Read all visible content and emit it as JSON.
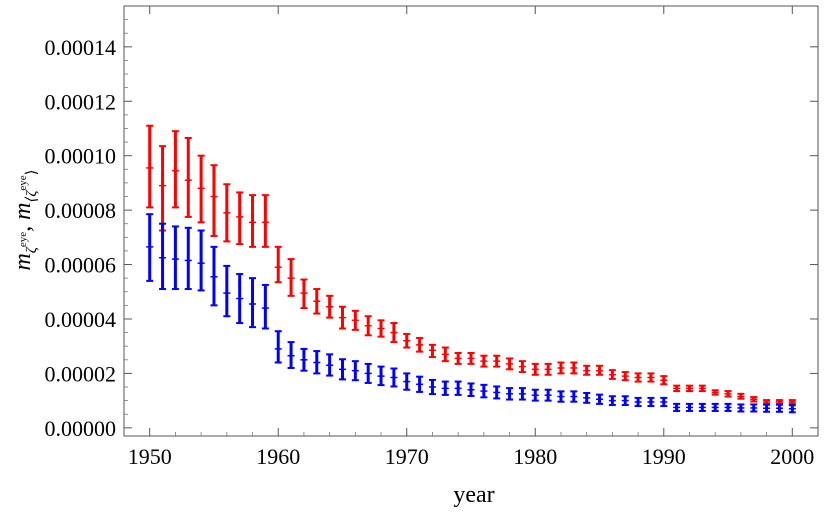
{
  "chart_data": {
    "type": "errorbar",
    "title": "",
    "xlabel": "year",
    "ylabel": "m_{ζ^eye}, m_{⟨ζ^eye⟩}",
    "ylabel_main": "m",
    "ylabel_sub1": "ζ",
    "ylabel_sup1": "eye",
    "ylabel_sep": ", m",
    "ylabel_sub2": "⟨ζ",
    "ylabel_sup2": "eye",
    "ylabel_close": "⟩",
    "xlim": [
      1948,
      2002
    ],
    "ylim": [
      -3e-06,
      0.000155
    ],
    "x_ticks": [
      1950,
      1960,
      1970,
      1980,
      1990,
      2000
    ],
    "x_tick_labels": [
      "1950",
      "1960",
      "1970",
      "1980",
      "1990",
      "2000"
    ],
    "y_ticks": [
      0,
      2e-05,
      4e-05,
      6e-05,
      8e-05,
      0.0001,
      0.00012,
      0.00014
    ],
    "y_tick_labels": [
      "0.00000",
      "0.00002",
      "0.00004",
      "0.00006",
      "0.00008",
      "0.00010",
      "0.00012",
      "0.00014"
    ],
    "grid": false,
    "legend": "none",
    "x": [
      1950,
      1951,
      1952,
      1953,
      1954,
      1955,
      1956,
      1957,
      1958,
      1959,
      1960,
      1961,
      1962,
      1963,
      1964,
      1965,
      1966,
      1967,
      1968,
      1969,
      1970,
      1971,
      1972,
      1973,
      1974,
      1975,
      1976,
      1977,
      1978,
      1979,
      1980,
      1981,
      1982,
      1983,
      1984,
      1985,
      1986,
      1987,
      1988,
      1989,
      1990,
      1991,
      1992,
      1993,
      1994,
      1995,
      1996,
      1997,
      1998,
      1999,
      2000
    ],
    "series": [
      {
        "color": "#ff0000",
        "center": [
          9.55e-05,
          8.9e-05,
          9.45e-05,
          9.1e-05,
          8.8e-05,
          8.5e-05,
          7.9e-05,
          7.75e-05,
          7.55e-05,
          7.55e-05,
          5.9e-05,
          5.5e-05,
          4.95e-05,
          4.65e-05,
          4.45e-05,
          4.05e-05,
          3.95e-05,
          3.75e-05,
          3.65e-05,
          3.5e-05,
          3.2e-05,
          3.05e-05,
          2.85e-05,
          2.7e-05,
          2.55e-05,
          2.55e-05,
          2.45e-05,
          2.45e-05,
          2.35e-05,
          2.25e-05,
          2.15e-05,
          2.15e-05,
          2.2e-05,
          2.2e-05,
          2.1e-05,
          2.1e-05,
          1.95e-05,
          1.9e-05,
          1.85e-05,
          1.85e-05,
          1.75e-05,
          1.45e-05,
          1.45e-05,
          1.45e-05,
          1.3e-05,
          1.25e-05,
          1.15e-05,
          1.05e-05,
          9.5e-06,
          9.5e-06,
          9.5e-06
        ],
        "low": [
          8.1e-05,
          7.25e-05,
          8.1e-05,
          7.75e-05,
          7.55e-05,
          7.05e-05,
          6.85e-05,
          6.75e-05,
          6.65e-05,
          6.65e-05,
          5.35e-05,
          4.85e-05,
          4.4e-05,
          4.2e-05,
          4.05e-05,
          3.65e-05,
          3.6e-05,
          3.4e-05,
          3.35e-05,
          3.15e-05,
          2.95e-05,
          2.8e-05,
          2.6e-05,
          2.45e-05,
          2.35e-05,
          2.35e-05,
          2.25e-05,
          2.25e-05,
          2.15e-05,
          2.05e-05,
          1.95e-05,
          1.95e-05,
          2e-05,
          2e-05,
          1.95e-05,
          1.95e-05,
          1.8e-05,
          1.75e-05,
          1.7e-05,
          1.7e-05,
          1.6e-05,
          1.35e-05,
          1.35e-05,
          1.35e-05,
          1.22e-05,
          1.15e-05,
          1.07e-05,
          9.7e-06,
          8.8e-06,
          8.8e-06,
          8.8e-06
        ],
        "high": [
          0.000111,
          0.0001035,
          0.000109,
          0.0001065,
          0.0001,
          9.65e-05,
          8.95e-05,
          8.65e-05,
          8.55e-05,
          8.55e-05,
          6.65e-05,
          6.2e-05,
          5.45e-05,
          5.1e-05,
          4.85e-05,
          4.45e-05,
          4.3e-05,
          4.1e-05,
          3.95e-05,
          3.85e-05,
          3.45e-05,
          3.3e-05,
          3.05e-05,
          2.95e-05,
          2.75e-05,
          2.75e-05,
          2.65e-05,
          2.65e-05,
          2.55e-05,
          2.45e-05,
          2.35e-05,
          2.35e-05,
          2.4e-05,
          2.4e-05,
          2.28e-05,
          2.28e-05,
          2.12e-05,
          2.05e-05,
          2e-05,
          2e-05,
          1.9e-05,
          1.55e-05,
          1.55e-05,
          1.55e-05,
          1.38e-05,
          1.35e-05,
          1.25e-05,
          1.13e-05,
          1.02e-05,
          1.02e-05,
          1.02e-05
        ]
      },
      {
        "color": "#0000ff",
        "center": [
          6.65e-05,
          6.25e-05,
          6.2e-05,
          6.15e-05,
          6.05e-05,
          5.55e-05,
          4.95e-05,
          4.75e-05,
          4.55e-05,
          4.4e-05,
          2.9e-05,
          2.65e-05,
          2.5e-05,
          2.4e-05,
          2.3e-05,
          2.15e-05,
          2.1e-05,
          2e-05,
          1.9e-05,
          1.85e-05,
          1.7e-05,
          1.6e-05,
          1.5e-05,
          1.45e-05,
          1.45e-05,
          1.4e-05,
          1.35e-05,
          1.3e-05,
          1.25e-05,
          1.25e-05,
          1.2e-05,
          1.2e-05,
          1.15e-05,
          1.15e-05,
          1.1e-05,
          1.05e-05,
          1e-05,
          1e-05,
          9.5e-06,
          9.5e-06,
          9.5e-06,
          7.5e-06,
          7.5e-06,
          7.5e-06,
          7.5e-06,
          7.5e-06,
          7.3e-06,
          7.3e-06,
          7.2e-06,
          7.2e-06,
          7e-06
        ],
        "low": [
          5.4e-05,
          5.1e-05,
          5.1e-05,
          5.1e-05,
          5.05e-05,
          4.5e-05,
          4.1e-05,
          3.85e-05,
          3.7e-05,
          3.65e-05,
          2.4e-05,
          2.2e-05,
          2.1e-05,
          2e-05,
          1.92e-05,
          1.78e-05,
          1.75e-05,
          1.65e-05,
          1.57e-05,
          1.52e-05,
          1.4e-05,
          1.32e-05,
          1.24e-05,
          1.21e-05,
          1.21e-05,
          1.17e-05,
          1.12e-05,
          1.08e-05,
          1.04e-05,
          1.04e-05,
          1e-05,
          1e-05,
          9.6e-06,
          9.6e-06,
          9.2e-06,
          8.8e-06,
          8.4e-06,
          8.4e-06,
          8e-06,
          8e-06,
          8e-06,
          6.2e-06,
          6.2e-06,
          6.2e-06,
          6.2e-06,
          6.2e-06,
          6e-06,
          6e-06,
          5.9e-06,
          5.9e-06,
          5.7e-06
        ],
        "high": [
          7.85e-05,
          7.5e-05,
          7.4e-05,
          7.35e-05,
          7.25e-05,
          6.65e-05,
          5.95e-05,
          5.65e-05,
          5.5e-05,
          5.25e-05,
          3.55e-05,
          3.15e-05,
          2.9e-05,
          2.82e-05,
          2.7e-05,
          2.52e-05,
          2.45e-05,
          2.35e-05,
          2.25e-05,
          2.18e-05,
          2e-05,
          1.88e-05,
          1.76e-05,
          1.7e-05,
          1.7e-05,
          1.63e-05,
          1.58e-05,
          1.52e-05,
          1.46e-05,
          1.46e-05,
          1.4e-05,
          1.4e-05,
          1.34e-05,
          1.34e-05,
          1.28e-05,
          1.22e-05,
          1.16e-05,
          1.16e-05,
          1.1e-05,
          1.1e-05,
          1.1e-05,
          8.8e-06,
          8.8e-06,
          8.8e-06,
          8.8e-06,
          8.8e-06,
          8.6e-06,
          8.6e-06,
          8.5e-06,
          8.5e-06,
          8.3e-06
        ]
      }
    ]
  }
}
